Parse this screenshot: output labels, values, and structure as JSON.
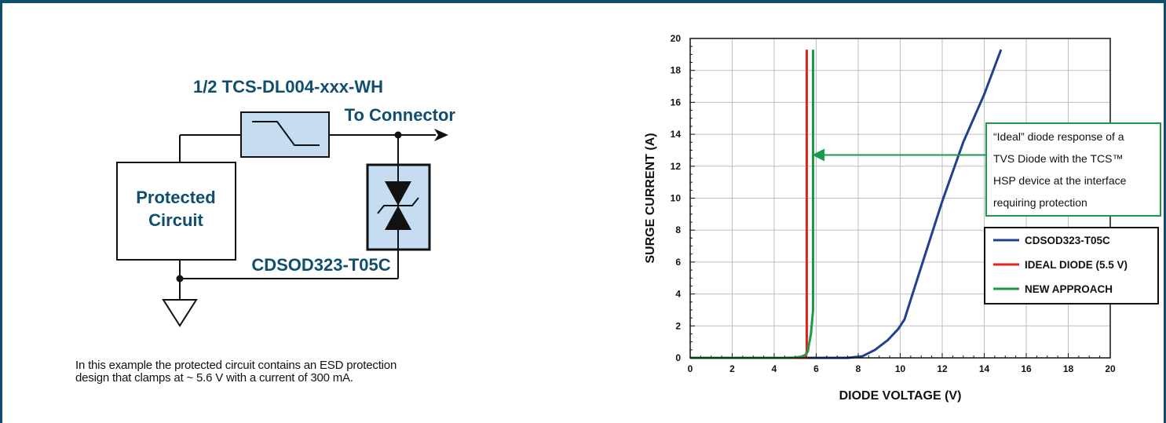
{
  "schematic": {
    "filter_label": "1/2 TCS-DL004-xxx-WH",
    "connector_label": "To Connector",
    "circuit_label_line1": "Protected",
    "circuit_label_line2": "Circuit",
    "diode_label": "CDSOD323-T05C"
  },
  "caption": {
    "line1": "In this example the protected circuit contains an ESD protection",
    "line2": "design that clamps at ~ 5.6 V with a current of 300 mA."
  },
  "chart_data": {
    "type": "line",
    "xlabel": "DIODE VOLTAGE (V)",
    "ylabel": "SURGE CURRENT (A)",
    "xlim": [
      0,
      20
    ],
    "ylim": [
      0,
      20
    ],
    "xticks": [
      "0",
      "2",
      "4",
      "6",
      "8",
      "10",
      "12",
      "14",
      "16",
      "18",
      "20"
    ],
    "yticks": [
      "0",
      "2",
      "4",
      "6",
      "8",
      "10",
      "12",
      "14",
      "16",
      "18",
      "20"
    ],
    "grid": true,
    "legend_position": "right",
    "series": [
      {
        "name": "CDSOD323-T05C",
        "color": "#233f8f",
        "x": [
          0,
          4,
          7.5,
          8.2,
          8.8,
          9.4,
          9.9,
          10.2,
          11.0,
          12.0,
          13.0,
          14.0,
          14.8
        ],
        "y": [
          0,
          0,
          0,
          0.1,
          0.5,
          1.1,
          1.8,
          2.4,
          5.7,
          9.8,
          13.5,
          16.5,
          19.3
        ]
      },
      {
        "name": "IDEAL DIODE (5.5 V)",
        "color": "#e2231a",
        "x": [
          0,
          5.3,
          5.5,
          5.55,
          5.55
        ],
        "y": [
          0,
          0,
          0,
          0.4,
          19.3
        ]
      },
      {
        "name": "NEW APPROACH",
        "color": "#1a9a4a",
        "x": [
          0,
          4.5,
          5.0,
          5.3,
          5.5,
          5.6,
          5.65,
          5.75,
          5.85,
          5.85
        ],
        "y": [
          0,
          0,
          0.02,
          0.08,
          0.2,
          0.4,
          0.8,
          1.5,
          3.0,
          19.3
        ]
      }
    ],
    "annotation": {
      "lines": [
        "“Ideal” diode response of a",
        "TVS Diode with the TCS™",
        "HSP device at the interface",
        "requiring protection"
      ],
      "arrow_to": {
        "x": 5.8,
        "y": 12.7
      },
      "color": "#1a9a4a"
    }
  }
}
